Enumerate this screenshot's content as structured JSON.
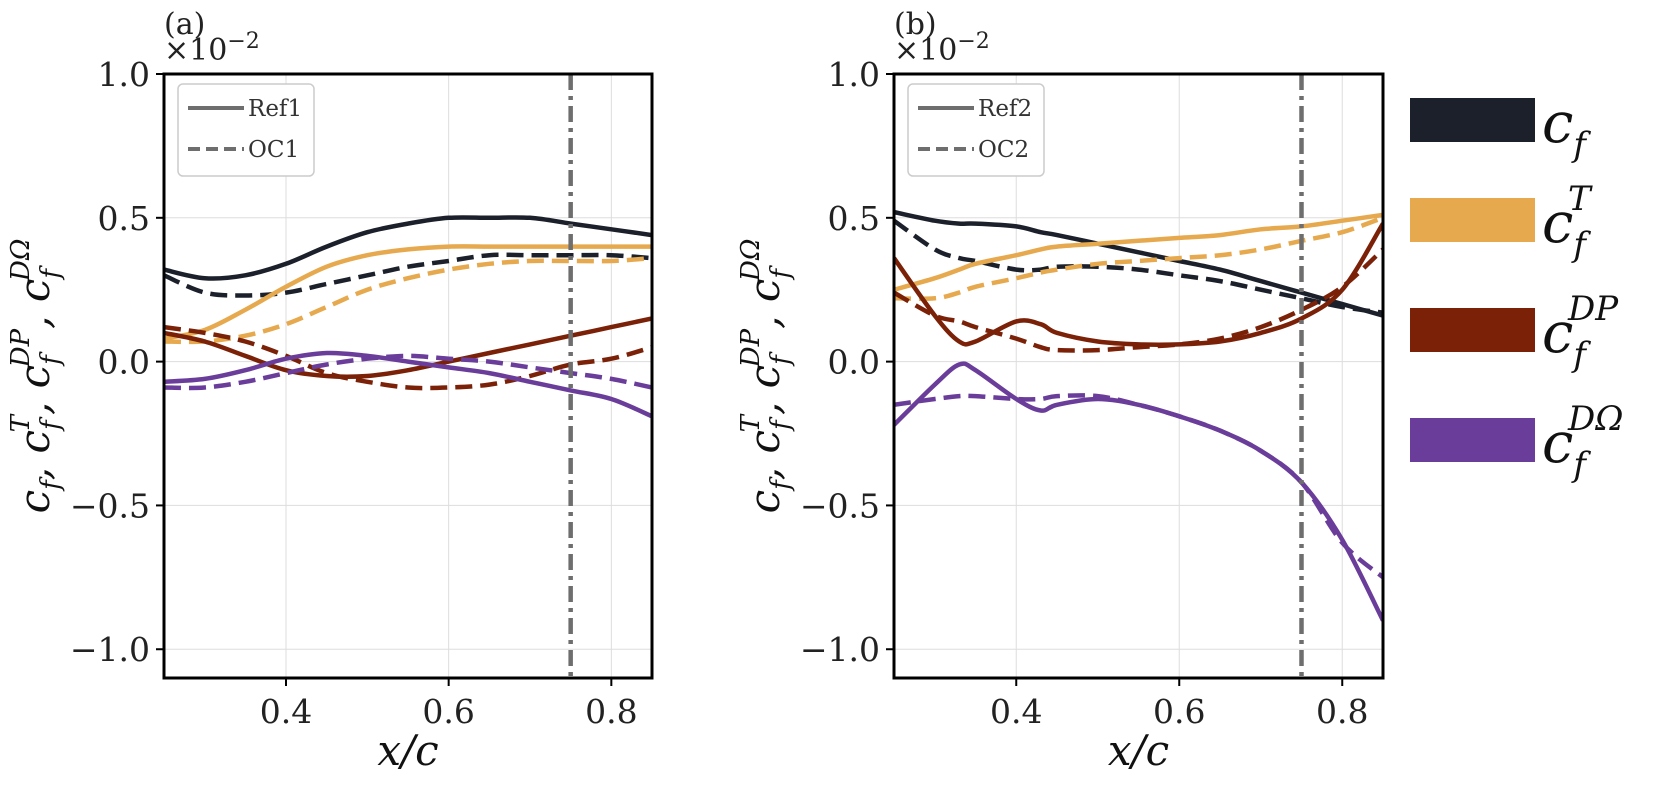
{
  "chart_data": [
    {
      "type": "line",
      "panel_label": "(a)",
      "xlabel": "x/c",
      "ylabel": "c_f, c_f^T, c_f^DP, c_f^DΩ",
      "ylabel_parts": [
        "c",
        "f",
        ", c",
        "f",
        "T",
        ", c",
        "f",
        "DP",
        ", c",
        "f",
        "DΩ"
      ],
      "y_exponent": "×10",
      "y_exponent_power": "−2",
      "xlim": [
        0.25,
        0.85
      ],
      "ylim": [
        -1.1,
        1.0
      ],
      "xticks": [
        0.4,
        0.6,
        0.8
      ],
      "xtick_labels": [
        "0.4",
        "0.6",
        "0.8"
      ],
      "yticks": [
        1.0,
        0.5,
        0.0,
        -0.5,
        -1.0
      ],
      "ytick_labels": [
        "1.0",
        "0.5",
        "0.0",
        "−0.5",
        "−1.0"
      ],
      "grid": true,
      "vline": 0.75,
      "style_legend": {
        "solid": "Ref1",
        "dashed": "OC1",
        "position": "top-left"
      },
      "x": [
        0.25,
        0.3,
        0.35,
        0.4,
        0.45,
        0.5,
        0.55,
        0.6,
        0.65,
        0.7,
        0.75,
        0.8,
        0.85
      ],
      "series": [
        {
          "name": "c_f",
          "color": "#1b202b",
          "style": "solid",
          "values": [
            0.32,
            0.29,
            0.3,
            0.34,
            0.4,
            0.45,
            0.48,
            0.5,
            0.5,
            0.5,
            0.48,
            0.46,
            0.44
          ]
        },
        {
          "name": "c_f",
          "color": "#1b202b",
          "style": "dashed",
          "values": [
            0.3,
            0.24,
            0.23,
            0.24,
            0.27,
            0.3,
            0.33,
            0.35,
            0.37,
            0.37,
            0.37,
            0.37,
            0.36
          ]
        },
        {
          "name": "c_f^T",
          "color": "#e6a94e",
          "style": "solid",
          "values": [
            0.08,
            0.11,
            0.18,
            0.26,
            0.33,
            0.37,
            0.39,
            0.4,
            0.4,
            0.4,
            0.4,
            0.4,
            0.4
          ]
        },
        {
          "name": "c_f^T",
          "color": "#e6a94e",
          "style": "dashed",
          "values": [
            0.07,
            0.07,
            0.09,
            0.13,
            0.19,
            0.25,
            0.29,
            0.32,
            0.34,
            0.35,
            0.35,
            0.35,
            0.36
          ]
        },
        {
          "name": "c_f^DP",
          "color": "#7a2108",
          "style": "solid",
          "values": [
            0.1,
            0.07,
            0.02,
            -0.03,
            -0.05,
            -0.05,
            -0.03,
            0.0,
            0.03,
            0.06,
            0.09,
            0.12,
            0.15
          ]
        },
        {
          "name": "c_f^DP",
          "color": "#7a2108",
          "style": "dashed",
          "values": [
            0.12,
            0.1,
            0.07,
            0.02,
            -0.04,
            -0.07,
            -0.09,
            -0.09,
            -0.08,
            -0.05,
            -0.01,
            0.01,
            0.05
          ]
        },
        {
          "name": "c_f^DΩ",
          "color": "#6a3d9a",
          "style": "solid",
          "values": [
            -0.07,
            -0.06,
            -0.03,
            0.01,
            0.03,
            0.02,
            0.0,
            -0.02,
            -0.04,
            -0.07,
            -0.1,
            -0.13,
            -0.19
          ]
        },
        {
          "name": "c_f^DΩ",
          "color": "#6a3d9a",
          "style": "dashed",
          "values": [
            -0.09,
            -0.09,
            -0.07,
            -0.04,
            -0.01,
            0.01,
            0.02,
            0.01,
            0.0,
            -0.02,
            -0.04,
            -0.06,
            -0.09
          ]
        }
      ]
    },
    {
      "type": "line",
      "panel_label": "(b)",
      "xlabel": "x/c",
      "ylabel": "c_f, c_f^T, c_f^DP, c_f^DΩ",
      "ylabel_parts": [
        "c",
        "f",
        ", c",
        "f",
        "T",
        ", c",
        "f",
        "DP",
        ", c",
        "f",
        "DΩ"
      ],
      "y_exponent": "×10",
      "y_exponent_power": "−2",
      "xlim": [
        0.25,
        0.85
      ],
      "ylim": [
        -1.1,
        1.0
      ],
      "xticks": [
        0.4,
        0.6,
        0.8
      ],
      "xtick_labels": [
        "0.4",
        "0.6",
        "0.8"
      ],
      "yticks": [
        1.0,
        0.5,
        0.0,
        -0.5,
        -1.0
      ],
      "ytick_labels": [
        "1.0",
        "0.5",
        "0.0",
        "−0.5",
        "−1.0"
      ],
      "grid": true,
      "vline": 0.75,
      "style_legend": {
        "solid": "Ref2",
        "dashed": "OC2",
        "position": "top-left"
      },
      "x": [
        0.25,
        0.3,
        0.33,
        0.35,
        0.4,
        0.43,
        0.45,
        0.5,
        0.55,
        0.6,
        0.65,
        0.7,
        0.75,
        0.8,
        0.85
      ],
      "series": [
        {
          "name": "c_f",
          "color": "#1b202b",
          "style": "solid",
          "values": [
            0.52,
            0.49,
            0.48,
            0.48,
            0.47,
            0.45,
            0.44,
            0.41,
            0.38,
            0.35,
            0.32,
            0.28,
            0.24,
            0.2,
            0.16
          ]
        },
        {
          "name": "c_f",
          "color": "#1b202b",
          "style": "dashed",
          "values": [
            0.49,
            0.39,
            0.36,
            0.35,
            0.32,
            0.32,
            0.33,
            0.33,
            0.32,
            0.3,
            0.28,
            0.25,
            0.22,
            0.19,
            0.17
          ]
        },
        {
          "name": "c_f^T",
          "color": "#e6a94e",
          "style": "solid",
          "values": [
            0.25,
            0.29,
            0.32,
            0.34,
            0.37,
            0.39,
            0.4,
            0.41,
            0.42,
            0.43,
            0.44,
            0.46,
            0.47,
            0.49,
            0.51
          ]
        },
        {
          "name": "c_f^T",
          "color": "#e6a94e",
          "style": "dashed",
          "values": [
            0.22,
            0.22,
            0.24,
            0.26,
            0.29,
            0.31,
            0.32,
            0.34,
            0.35,
            0.36,
            0.37,
            0.39,
            0.42,
            0.45,
            0.5
          ]
        },
        {
          "name": "c_f^DP",
          "color": "#7a2108",
          "style": "solid",
          "values": [
            0.36,
            0.16,
            0.07,
            0.07,
            0.14,
            0.13,
            0.1,
            0.07,
            0.06,
            0.06,
            0.07,
            0.1,
            0.15,
            0.25,
            0.48
          ]
        },
        {
          "name": "c_f^DP",
          "color": "#7a2108",
          "style": "dashed",
          "values": [
            0.24,
            0.16,
            0.14,
            0.12,
            0.08,
            0.05,
            0.04,
            0.04,
            0.05,
            0.06,
            0.08,
            0.12,
            0.18,
            0.26,
            0.39
          ]
        },
        {
          "name": "c_f^DΩ",
          "color": "#6a3d9a",
          "style": "solid",
          "values": [
            -0.22,
            -0.08,
            -0.01,
            -0.03,
            -0.13,
            -0.17,
            -0.15,
            -0.13,
            -0.15,
            -0.19,
            -0.24,
            -0.31,
            -0.42,
            -0.62,
            -0.9
          ]
        },
        {
          "name": "c_f^DΩ",
          "color": "#6a3d9a",
          "style": "dashed",
          "values": [
            -0.15,
            -0.13,
            -0.12,
            -0.12,
            -0.13,
            -0.13,
            -0.12,
            -0.12,
            -0.15,
            -0.19,
            -0.24,
            -0.31,
            -0.42,
            -0.63,
            -0.75
          ]
        }
      ]
    }
  ],
  "color_legend": [
    {
      "base": "c",
      "sub": "f",
      "sup": "",
      "color": "#1b202b"
    },
    {
      "base": "c",
      "sub": "f",
      "sup": "T",
      "color": "#e6a94e"
    },
    {
      "base": "c",
      "sub": "f",
      "sup": "DP",
      "color": "#7a2108"
    },
    {
      "base": "c",
      "sub": "f",
      "sup": "DΩ",
      "color": "#6a3d9a"
    }
  ],
  "style": {
    "grid_color": "#dddddd",
    "axis_color": "#000000",
    "vline_color": "#6e6e6e",
    "legend_line_color": "#6e6e6e"
  }
}
